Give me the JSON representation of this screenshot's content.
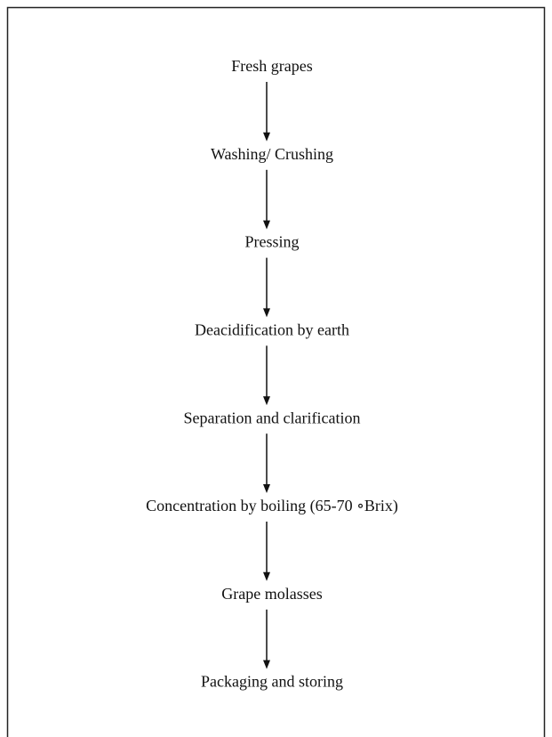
{
  "nodes": [
    {
      "label": "Fresh grapes"
    },
    {
      "label": "Washing/ Crushing"
    },
    {
      "label": "Pressing"
    },
    {
      "label": "Deacidification by earth"
    },
    {
      "label": "Separation and clarification"
    },
    {
      "label": "Concentration by boiling (65-70 ∘Brix)"
    },
    {
      "label": "Grape molasses"
    },
    {
      "label": "Packaging and storing"
    }
  ]
}
